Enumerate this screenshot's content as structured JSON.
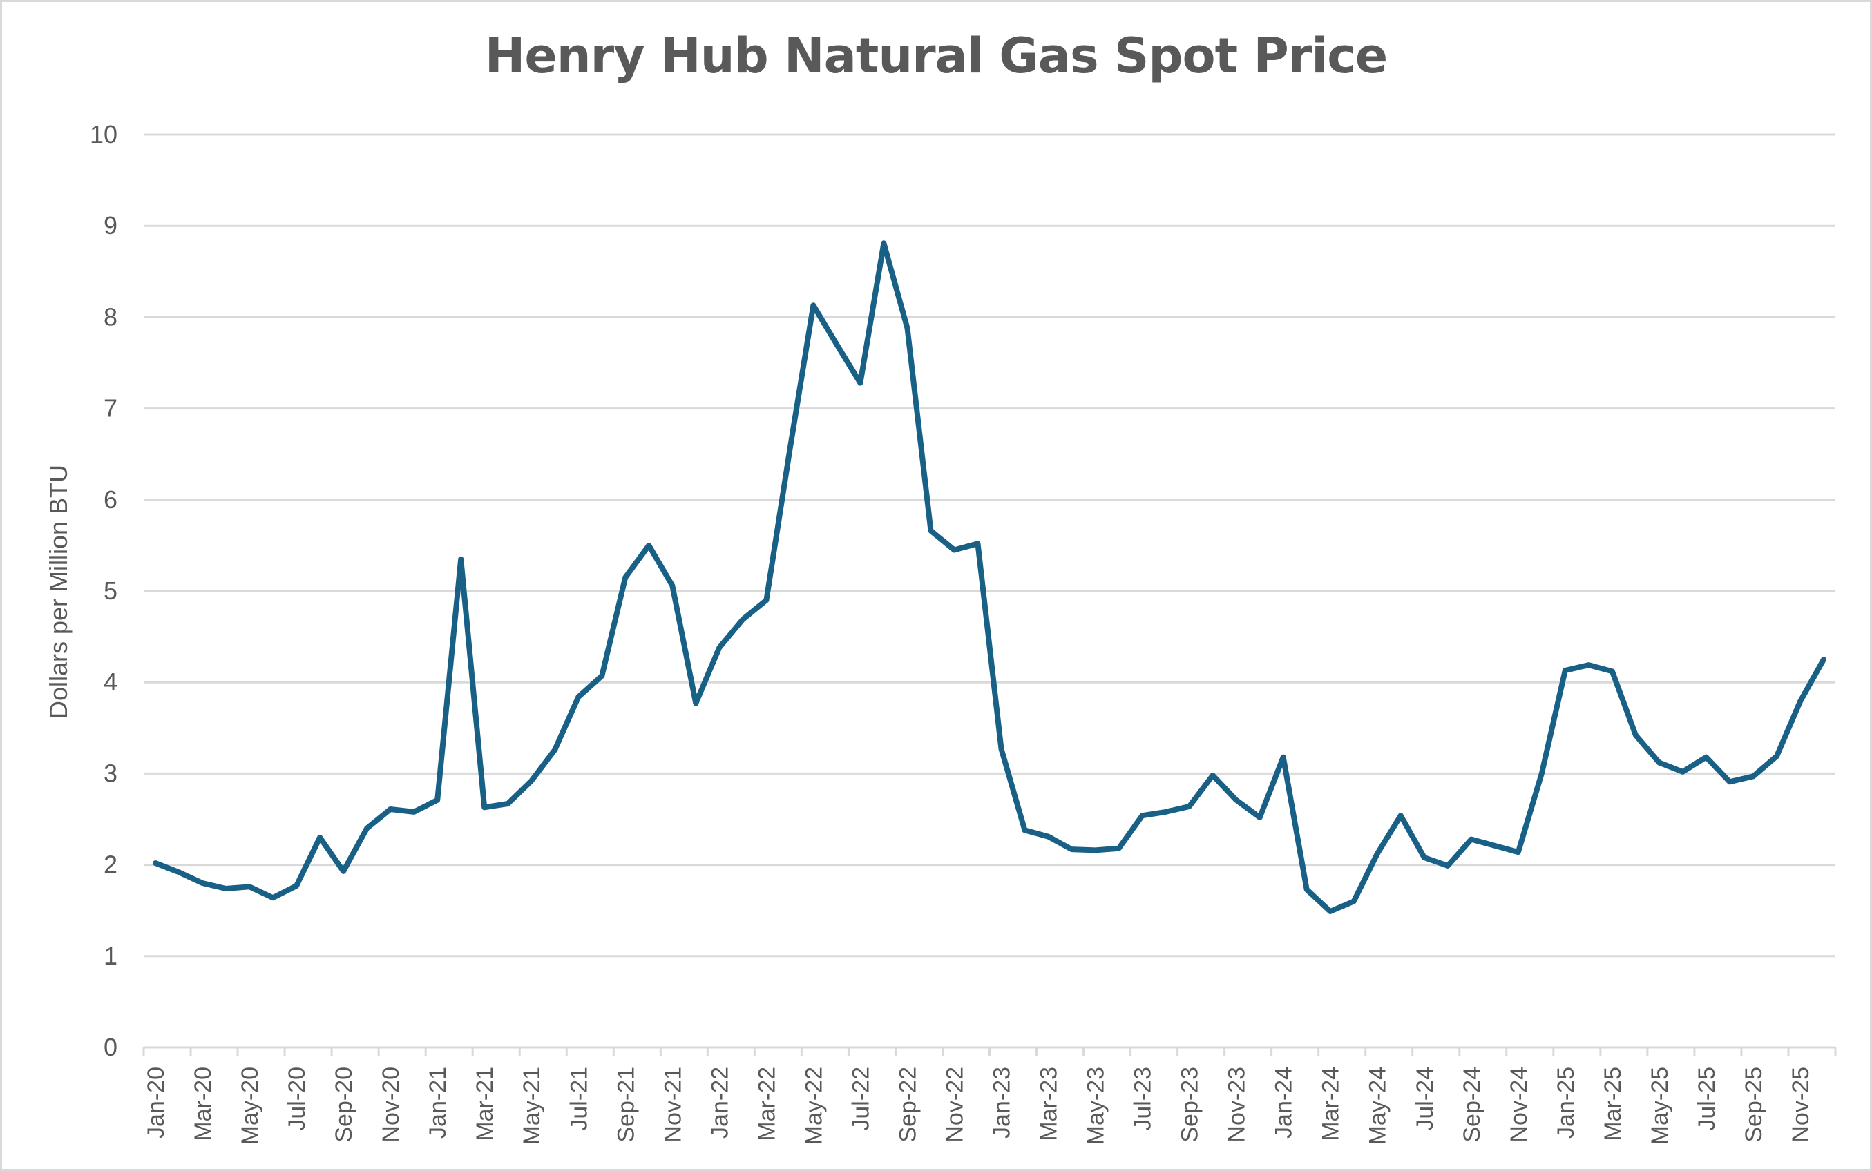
{
  "chart_data": {
    "type": "line",
    "title": "Henry Hub Natural Gas Spot Price",
    "xlabel": "",
    "ylabel": "Dollars per Million BTU",
    "ylim": [
      0,
      10
    ],
    "yticks": [
      0,
      1,
      2,
      3,
      4,
      5,
      6,
      7,
      8,
      9,
      10
    ],
    "grid": true,
    "legend": null,
    "line_color": "#196086",
    "gridline_color": "#d9d9d9",
    "text_color": "#595959",
    "x_tick_labels": [
      "Jan-20",
      "Mar-20",
      "May-20",
      "Jul-20",
      "Sep-20",
      "Nov-20",
      "Jan-21",
      "Mar-21",
      "May-21",
      "Jul-21",
      "Sep-21",
      "Nov-21",
      "Jan-22",
      "Mar-22",
      "May-22",
      "Jul-22",
      "Sep-22",
      "Nov-22",
      "Jan-23",
      "Mar-23",
      "May-23",
      "Jul-23",
      "Sep-23",
      "Nov-23",
      "Jan-24",
      "Mar-24",
      "May-24",
      "Jul-24",
      "Sep-24",
      "Nov-24",
      "Jan-25",
      "Mar-25",
      "May-25",
      "Jul-25",
      "Sep-25",
      "Nov-25"
    ],
    "x": [
      "Jan-20",
      "Feb-20",
      "Mar-20",
      "Apr-20",
      "May-20",
      "Jun-20",
      "Jul-20",
      "Aug-20",
      "Sep-20",
      "Oct-20",
      "Nov-20",
      "Dec-20",
      "Jan-21",
      "Feb-21",
      "Mar-21",
      "Apr-21",
      "May-21",
      "Jun-21",
      "Jul-21",
      "Aug-21",
      "Sep-21",
      "Oct-21",
      "Nov-21",
      "Dec-21",
      "Jan-22",
      "Feb-22",
      "Mar-22",
      "Apr-22",
      "May-22",
      "Jun-22",
      "Jul-22",
      "Aug-22",
      "Sep-22",
      "Oct-22",
      "Nov-22",
      "Dec-22",
      "Jan-23",
      "Feb-23",
      "Mar-23",
      "Apr-23",
      "May-23",
      "Jun-23",
      "Jul-23",
      "Aug-23",
      "Sep-23",
      "Oct-23",
      "Nov-23",
      "Dec-23",
      "Jan-24",
      "Feb-24",
      "Mar-24",
      "Apr-24",
      "May-24",
      "Jun-24",
      "Jul-24",
      "Aug-24",
      "Sep-24",
      "Oct-24",
      "Nov-24",
      "Dec-24",
      "Jan-25",
      "Feb-25",
      "Mar-25",
      "Apr-25",
      "May-25",
      "Jun-25",
      "Jul-25",
      "Aug-25",
      "Sep-25",
      "Oct-25",
      "Nov-25",
      "Dec-25"
    ],
    "series": [
      {
        "name": "Henry Hub Natural Gas Spot Price",
        "values": [
          2.02,
          1.92,
          1.8,
          1.74,
          1.76,
          1.64,
          1.77,
          2.3,
          1.93,
          2.4,
          2.61,
          2.58,
          2.71,
          5.35,
          2.63,
          2.67,
          2.92,
          3.26,
          3.84,
          4.07,
          5.15,
          5.5,
          5.06,
          3.77,
          4.38,
          4.69,
          4.9,
          6.55,
          8.13,
          7.7,
          7.28,
          8.81,
          7.88,
          5.66,
          5.45,
          5.52,
          3.27,
          2.38,
          2.31,
          2.17,
          2.16,
          2.18,
          2.54,
          2.58,
          2.64,
          2.98,
          2.71,
          2.52,
          3.18,
          1.73,
          1.49,
          1.6,
          2.12,
          2.54,
          2.08,
          1.99,
          2.28,
          2.21,
          2.14,
          3.0,
          4.13,
          4.19,
          4.12,
          3.42,
          3.12,
          3.02,
          3.18,
          2.91,
          2.97,
          3.19,
          3.79,
          4.25
        ]
      }
    ]
  }
}
